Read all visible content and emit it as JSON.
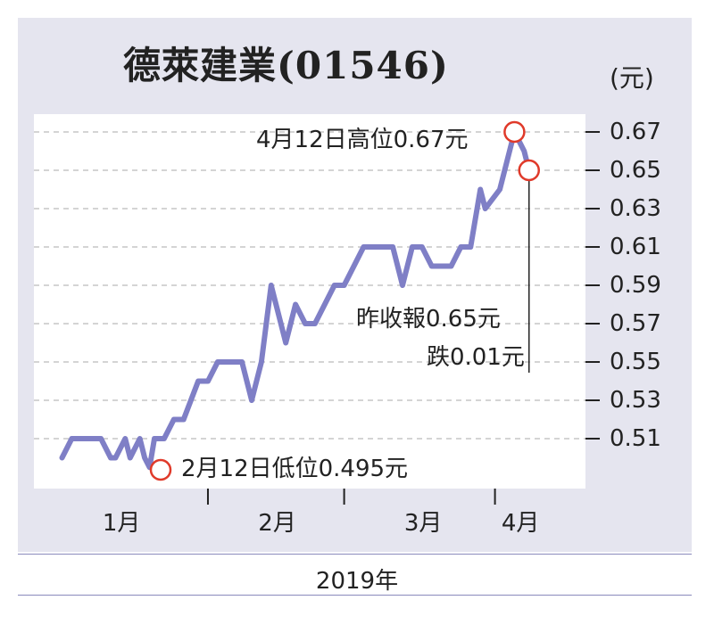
{
  "chart_data": {
    "type": "line",
    "title": "德萊建業(01546)",
    "unit": "(元)",
    "y_ticks": [
      "0.67",
      "0.65",
      "0.63",
      "0.61",
      "0.59",
      "0.57",
      "0.55",
      "0.53",
      "0.51"
    ],
    "ylim": [
      0.49,
      0.675
    ],
    "x_ticks": [
      "1月",
      "2月",
      "3月",
      "4月"
    ],
    "xlabel": "2019年",
    "grid": true,
    "series": [
      {
        "color": "#7f7fc6",
        "points": [
          [
            1,
            0.5
          ],
          [
            3,
            0.51
          ],
          [
            9,
            0.51
          ],
          [
            11,
            0.5
          ],
          [
            12,
            0.5
          ],
          [
            14,
            0.51
          ],
          [
            15,
            0.5
          ],
          [
            17,
            0.51
          ],
          [
            18,
            0.5
          ],
          [
            19,
            0.495
          ],
          [
            20,
            0.51
          ],
          [
            22,
            0.51
          ],
          [
            24,
            0.52
          ],
          [
            26,
            0.52
          ],
          [
            29,
            0.54
          ],
          [
            31,
            0.54
          ],
          [
            33,
            0.55
          ],
          [
            38,
            0.55
          ],
          [
            40,
            0.53
          ],
          [
            42,
            0.55
          ],
          [
            44,
            0.59
          ],
          [
            47,
            0.56
          ],
          [
            49,
            0.58
          ],
          [
            51,
            0.57
          ],
          [
            53,
            0.57
          ],
          [
            57,
            0.59
          ],
          [
            59,
            0.59
          ],
          [
            63,
            0.61
          ],
          [
            69,
            0.61
          ],
          [
            71,
            0.59
          ],
          [
            73,
            0.61
          ],
          [
            75,
            0.61
          ],
          [
            77,
            0.6
          ],
          [
            81,
            0.6
          ],
          [
            83,
            0.61
          ],
          [
            85,
            0.61
          ],
          [
            87,
            0.64
          ],
          [
            88,
            0.63
          ],
          [
            91,
            0.64
          ],
          [
            94,
            0.67
          ],
          [
            96,
            0.66
          ],
          [
            97,
            0.65
          ]
        ]
      }
    ],
    "x_day_range": [
      0,
      102
    ],
    "month_starts": [
      0,
      31,
      59,
      90
    ],
    "x_label_positions": [
      13,
      45,
      75,
      95
    ],
    "annotations": {
      "high": {
        "text": "4月12日高位0.67元",
        "x": 94,
        "y": 0.67
      },
      "low": {
        "text": "2月12日低位0.495元",
        "x": 19,
        "y": 0.495
      },
      "close": {
        "text1": "昨收報0.65元",
        "text2": "跌0.01元",
        "x": 97,
        "y": 0.65
      }
    }
  }
}
